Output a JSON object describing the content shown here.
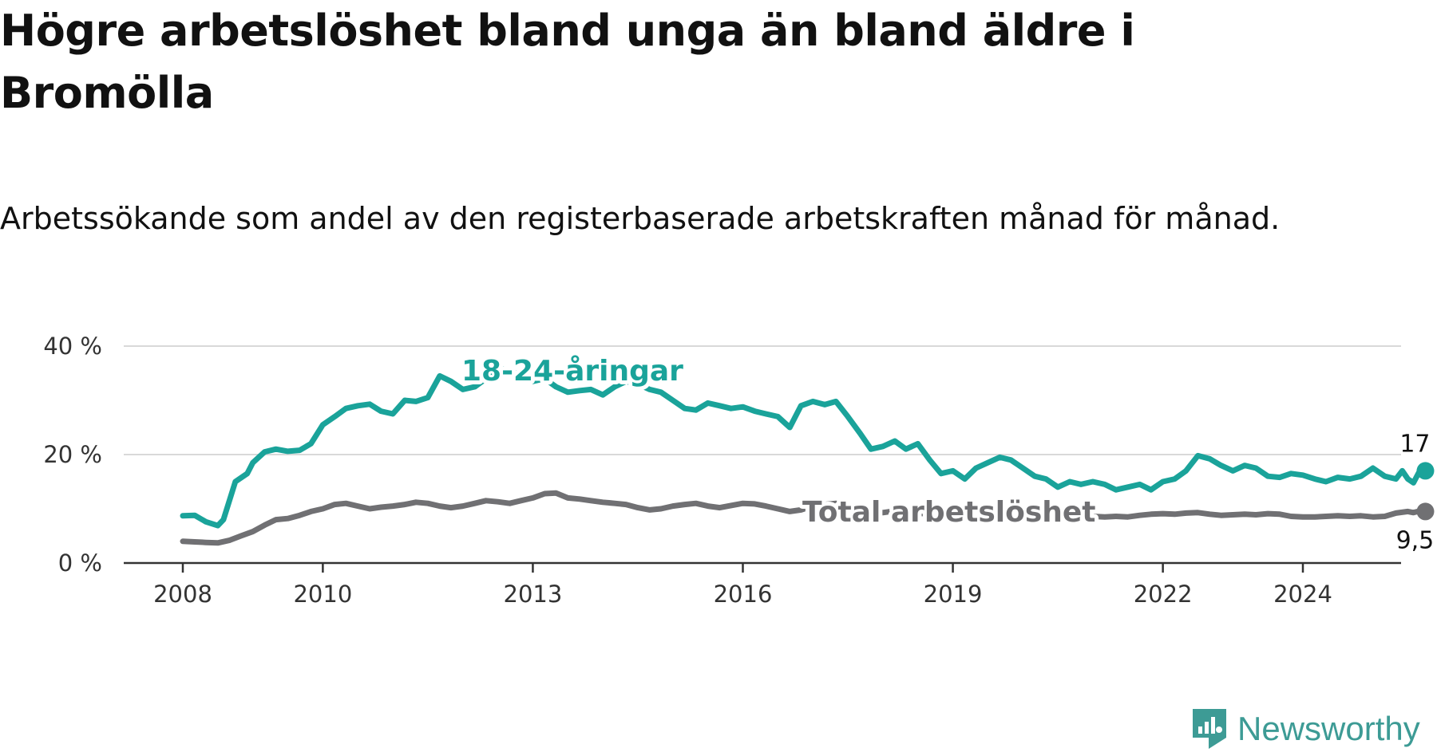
{
  "title": "Högre arbetslöshet bland unga än bland äldre i Bromölla",
  "subtitle": "Arbetssökande som andel av den registerbaserade arbetskraften månad för månad.",
  "brand": {
    "name": "Newsworthy",
    "color": "#3d9b95"
  },
  "chart_data": {
    "type": "line",
    "title": "Högre arbetslöshet bland unga än bland äldre i Bromölla",
    "subtitle": "Arbetssökande som andel av den registerbaserade arbetskraften månad för månad.",
    "xlabel": "",
    "ylabel": "",
    "xlim": [
      2007.9,
      2025.8
    ],
    "ylim": [
      0,
      40
    ],
    "grid": true,
    "y_ticks": [
      0,
      20,
      40
    ],
    "y_tick_labels": [
      "0 %",
      "20 %",
      "40 %"
    ],
    "x_ticks": [
      2008,
      2010,
      2013,
      2016,
      2019,
      2022,
      2024
    ],
    "x_tick_labels": [
      "2008",
      "2010",
      "2013",
      "2016",
      "2019",
      "2022",
      "2024"
    ],
    "series": [
      {
        "name": "18-24-åringar",
        "color": "#1aa39a",
        "end_label": "17 %",
        "points": [
          [
            2008.0,
            8.7
          ],
          [
            2008.17,
            8.8
          ],
          [
            2008.33,
            7.6
          ],
          [
            2008.5,
            6.9
          ],
          [
            2008.58,
            8.0
          ],
          [
            2008.75,
            15.0
          ],
          [
            2008.92,
            16.5
          ],
          [
            2009.0,
            18.5
          ],
          [
            2009.17,
            20.5
          ],
          [
            2009.33,
            21.0
          ],
          [
            2009.5,
            20.6
          ],
          [
            2009.67,
            20.8
          ],
          [
            2009.83,
            22.0
          ],
          [
            2010.0,
            25.5
          ],
          [
            2010.17,
            27.0
          ],
          [
            2010.33,
            28.5
          ],
          [
            2010.5,
            29.0
          ],
          [
            2010.67,
            29.3
          ],
          [
            2010.83,
            28.0
          ],
          [
            2011.0,
            27.5
          ],
          [
            2011.17,
            30.0
          ],
          [
            2011.33,
            29.8
          ],
          [
            2011.5,
            30.5
          ],
          [
            2011.67,
            34.5
          ],
          [
            2011.83,
            33.5
          ],
          [
            2012.0,
            32.0
          ],
          [
            2012.17,
            32.5
          ],
          [
            2012.33,
            34.0
          ],
          [
            2012.5,
            36.0
          ],
          [
            2012.67,
            35.5
          ],
          [
            2012.83,
            34.5
          ],
          [
            2013.0,
            33.5
          ],
          [
            2013.17,
            34.0
          ],
          [
            2013.33,
            32.5
          ],
          [
            2013.5,
            31.5
          ],
          [
            2013.67,
            31.8
          ],
          [
            2013.83,
            32.0
          ],
          [
            2014.0,
            31.0
          ],
          [
            2014.17,
            32.5
          ],
          [
            2014.33,
            33.5
          ],
          [
            2014.5,
            33.0
          ],
          [
            2014.67,
            32.0
          ],
          [
            2014.83,
            31.5
          ],
          [
            2015.0,
            30.0
          ],
          [
            2015.17,
            28.5
          ],
          [
            2015.33,
            28.2
          ],
          [
            2015.5,
            29.5
          ],
          [
            2015.67,
            29.0
          ],
          [
            2015.83,
            28.5
          ],
          [
            2016.0,
            28.8
          ],
          [
            2016.17,
            28.0
          ],
          [
            2016.33,
            27.5
          ],
          [
            2016.5,
            27.0
          ],
          [
            2016.67,
            25.0
          ],
          [
            2016.83,
            29.0
          ],
          [
            2017.0,
            29.8
          ],
          [
            2017.17,
            29.2
          ],
          [
            2017.33,
            29.8
          ],
          [
            2017.5,
            27.0
          ],
          [
            2017.67,
            24.0
          ],
          [
            2017.83,
            21.0
          ],
          [
            2018.0,
            21.5
          ],
          [
            2018.17,
            22.5
          ],
          [
            2018.33,
            21.0
          ],
          [
            2018.5,
            22.0
          ],
          [
            2018.67,
            19.0
          ],
          [
            2018.83,
            16.5
          ],
          [
            2019.0,
            17.0
          ],
          [
            2019.17,
            15.5
          ],
          [
            2019.33,
            17.5
          ],
          [
            2019.5,
            18.5
          ],
          [
            2019.67,
            19.5
          ],
          [
            2019.83,
            19.0
          ],
          [
            2020.0,
            17.5
          ],
          [
            2020.17,
            16.0
          ],
          [
            2020.33,
            15.5
          ],
          [
            2020.5,
            14.0
          ],
          [
            2020.67,
            15.0
          ],
          [
            2020.83,
            14.5
          ],
          [
            2021.0,
            15.0
          ],
          [
            2021.17,
            14.5
          ],
          [
            2021.33,
            13.5
          ],
          [
            2021.5,
            14.0
          ],
          [
            2021.67,
            14.5
          ],
          [
            2021.83,
            13.5
          ],
          [
            2022.0,
            15.0
          ],
          [
            2022.17,
            15.5
          ],
          [
            2022.33,
            17.0
          ],
          [
            2022.5,
            19.8
          ],
          [
            2022.67,
            19.2
          ],
          [
            2022.83,
            18.0
          ],
          [
            2023.0,
            17.0
          ],
          [
            2023.17,
            18.0
          ],
          [
            2023.33,
            17.5
          ],
          [
            2023.5,
            16.0
          ],
          [
            2023.67,
            15.8
          ],
          [
            2023.83,
            16.5
          ],
          [
            2024.0,
            16.2
          ],
          [
            2024.17,
            15.5
          ],
          [
            2024.33,
            15.0
          ],
          [
            2024.5,
            15.8
          ],
          [
            2024.67,
            15.5
          ],
          [
            2024.83,
            16.0
          ],
          [
            2025.0,
            17.5
          ],
          [
            2025.17,
            16.0
          ],
          [
            2025.33,
            15.5
          ],
          [
            2025.42,
            17.0
          ],
          [
            2025.5,
            15.5
          ],
          [
            2025.58,
            14.8
          ],
          [
            2025.67,
            17.0
          ],
          [
            2025.75,
            17.0
          ]
        ]
      },
      {
        "name": "Total arbetslöshet",
        "color": "#707073",
        "end_label": "9,5 %",
        "points": [
          [
            2008.0,
            4.0
          ],
          [
            2008.17,
            3.9
          ],
          [
            2008.33,
            3.8
          ],
          [
            2008.5,
            3.7
          ],
          [
            2008.67,
            4.2
          ],
          [
            2008.83,
            5.0
          ],
          [
            2009.0,
            5.8
          ],
          [
            2009.17,
            7.0
          ],
          [
            2009.33,
            8.0
          ],
          [
            2009.5,
            8.2
          ],
          [
            2009.67,
            8.8
          ],
          [
            2009.83,
            9.5
          ],
          [
            2010.0,
            10.0
          ],
          [
            2010.17,
            10.8
          ],
          [
            2010.33,
            11.0
          ],
          [
            2010.5,
            10.5
          ],
          [
            2010.67,
            10.0
          ],
          [
            2010.83,
            10.3
          ],
          [
            2011.0,
            10.5
          ],
          [
            2011.17,
            10.8
          ],
          [
            2011.33,
            11.2
          ],
          [
            2011.5,
            11.0
          ],
          [
            2011.67,
            10.5
          ],
          [
            2011.83,
            10.2
          ],
          [
            2012.0,
            10.5
          ],
          [
            2012.17,
            11.0
          ],
          [
            2012.33,
            11.5
          ],
          [
            2012.5,
            11.3
          ],
          [
            2012.67,
            11.0
          ],
          [
            2012.83,
            11.5
          ],
          [
            2013.0,
            12.0
          ],
          [
            2013.17,
            12.8
          ],
          [
            2013.33,
            12.9
          ],
          [
            2013.5,
            12.0
          ],
          [
            2013.67,
            11.8
          ],
          [
            2013.83,
            11.5
          ],
          [
            2014.0,
            11.2
          ],
          [
            2014.17,
            11.0
          ],
          [
            2014.33,
            10.8
          ],
          [
            2014.5,
            10.2
          ],
          [
            2014.67,
            9.8
          ],
          [
            2014.83,
            10.0
          ],
          [
            2015.0,
            10.5
          ],
          [
            2015.17,
            10.8
          ],
          [
            2015.33,
            11.0
          ],
          [
            2015.5,
            10.5
          ],
          [
            2015.67,
            10.2
          ],
          [
            2015.83,
            10.6
          ],
          [
            2016.0,
            11.0
          ],
          [
            2016.17,
            10.9
          ],
          [
            2016.33,
            10.5
          ],
          [
            2016.5,
            10.0
          ],
          [
            2016.67,
            9.5
          ],
          [
            2016.83,
            9.8
          ],
          [
            2017.0,
            10.5
          ],
          [
            2017.17,
            10.8
          ],
          [
            2017.33,
            11.0
          ],
          [
            2017.5,
            10.5
          ],
          [
            2017.67,
            9.8
          ],
          [
            2017.83,
            9.2
          ],
          [
            2018.0,
            9.3
          ],
          [
            2018.17,
            9.6
          ],
          [
            2018.33,
            9.6
          ],
          [
            2018.5,
            9.2
          ],
          [
            2018.67,
            9.0
          ],
          [
            2018.83,
            9.0
          ],
          [
            2019.0,
            8.8
          ],
          [
            2019.17,
            8.7
          ],
          [
            2019.33,
            8.8
          ],
          [
            2019.5,
            8.7
          ],
          [
            2019.67,
            8.8
          ],
          [
            2019.83,
            8.7
          ],
          [
            2020.0,
            8.8
          ],
          [
            2020.17,
            8.6
          ],
          [
            2020.33,
            8.5
          ],
          [
            2020.5,
            8.6
          ],
          [
            2020.67,
            8.8
          ],
          [
            2020.83,
            8.7
          ],
          [
            2021.0,
            8.6
          ],
          [
            2021.17,
            8.5
          ],
          [
            2021.33,
            8.6
          ],
          [
            2021.5,
            8.5
          ],
          [
            2021.67,
            8.8
          ],
          [
            2021.83,
            9.0
          ],
          [
            2022.0,
            9.1
          ],
          [
            2022.17,
            9.0
          ],
          [
            2022.33,
            9.2
          ],
          [
            2022.5,
            9.3
          ],
          [
            2022.67,
            9.0
          ],
          [
            2022.83,
            8.8
          ],
          [
            2023.0,
            8.9
          ],
          [
            2023.17,
            9.0
          ],
          [
            2023.33,
            8.9
          ],
          [
            2023.5,
            9.1
          ],
          [
            2023.67,
            9.0
          ],
          [
            2023.83,
            8.6
          ],
          [
            2024.0,
            8.5
          ],
          [
            2024.17,
            8.5
          ],
          [
            2024.33,
            8.6
          ],
          [
            2024.5,
            8.7
          ],
          [
            2024.67,
            8.6
          ],
          [
            2024.83,
            8.7
          ],
          [
            2025.0,
            8.5
          ],
          [
            2025.17,
            8.6
          ],
          [
            2025.33,
            9.2
          ],
          [
            2025.5,
            9.5
          ],
          [
            2025.58,
            9.3
          ],
          [
            2025.67,
            9.6
          ],
          [
            2025.75,
            9.5
          ]
        ]
      }
    ]
  }
}
